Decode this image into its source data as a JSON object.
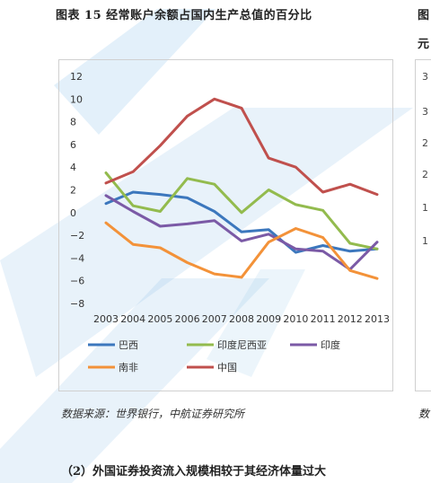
{
  "figure_title": "图表 15 经常账户余额占国内生产总值的百分比",
  "right_title_fragment": "图",
  "right_title_fragment2": "元",
  "right_ticks": [
    "3",
    "3",
    "2",
    "2",
    "1",
    "1"
  ],
  "source_text": "数据来源：世界银行，中航证券研究所",
  "right_source_fragment": "数",
  "section_heading": "（2）外国证券投资流入规模相较于其经济体量过大",
  "colors": {
    "watermark": "#7fb9e6"
  },
  "chart_data": {
    "type": "line",
    "title": "",
    "xlabel": "",
    "ylabel": "",
    "x": [
      "2003",
      "2004",
      "2005",
      "2006",
      "2007",
      "2008",
      "2009",
      "2010",
      "2011",
      "2012",
      "2013"
    ],
    "ylim": [
      -8,
      12
    ],
    "yticks": [
      12,
      10,
      8,
      6,
      4,
      2,
      0,
      -2,
      -4,
      -6,
      -8
    ],
    "ytick_labels": [
      "12",
      "10",
      "8",
      "6",
      "4",
      "2",
      "0",
      "−2",
      "−4",
      "−6",
      "−8"
    ],
    "grid": false,
    "legend": "bottom",
    "series": [
      {
        "name": "巴西",
        "color": "#3c77bd",
        "values": [
          0.8,
          1.8,
          1.6,
          1.3,
          0.1,
          -1.7,
          -1.5,
          -3.5,
          -2.9,
          -3.4,
          -3.2
        ]
      },
      {
        "name": "印度尼西亚",
        "color": "#93bb4e",
        "values": [
          3.5,
          0.6,
          0.1,
          3.0,
          2.5,
          0.0,
          2.0,
          0.7,
          0.2,
          -2.7,
          -3.2
        ]
      },
      {
        "name": "印度",
        "color": "#7b5aa6",
        "values": [
          1.5,
          0.1,
          -1.2,
          -1.0,
          -0.7,
          -2.5,
          -1.9,
          -3.2,
          -3.4,
          -5.0,
          -2.6
        ]
      },
      {
        "name": "南非",
        "color": "#f39239",
        "values": [
          -0.9,
          -2.8,
          -3.1,
          -4.4,
          -5.4,
          -5.7,
          -2.6,
          -1.4,
          -2.2,
          -5.1,
          -5.8
        ]
      },
      {
        "name": "中国",
        "color": "#c0504d",
        "values": [
          2.6,
          3.6,
          5.9,
          8.5,
          10.0,
          9.2,
          4.8,
          4.0,
          1.8,
          2.5,
          1.6
        ]
      }
    ]
  }
}
